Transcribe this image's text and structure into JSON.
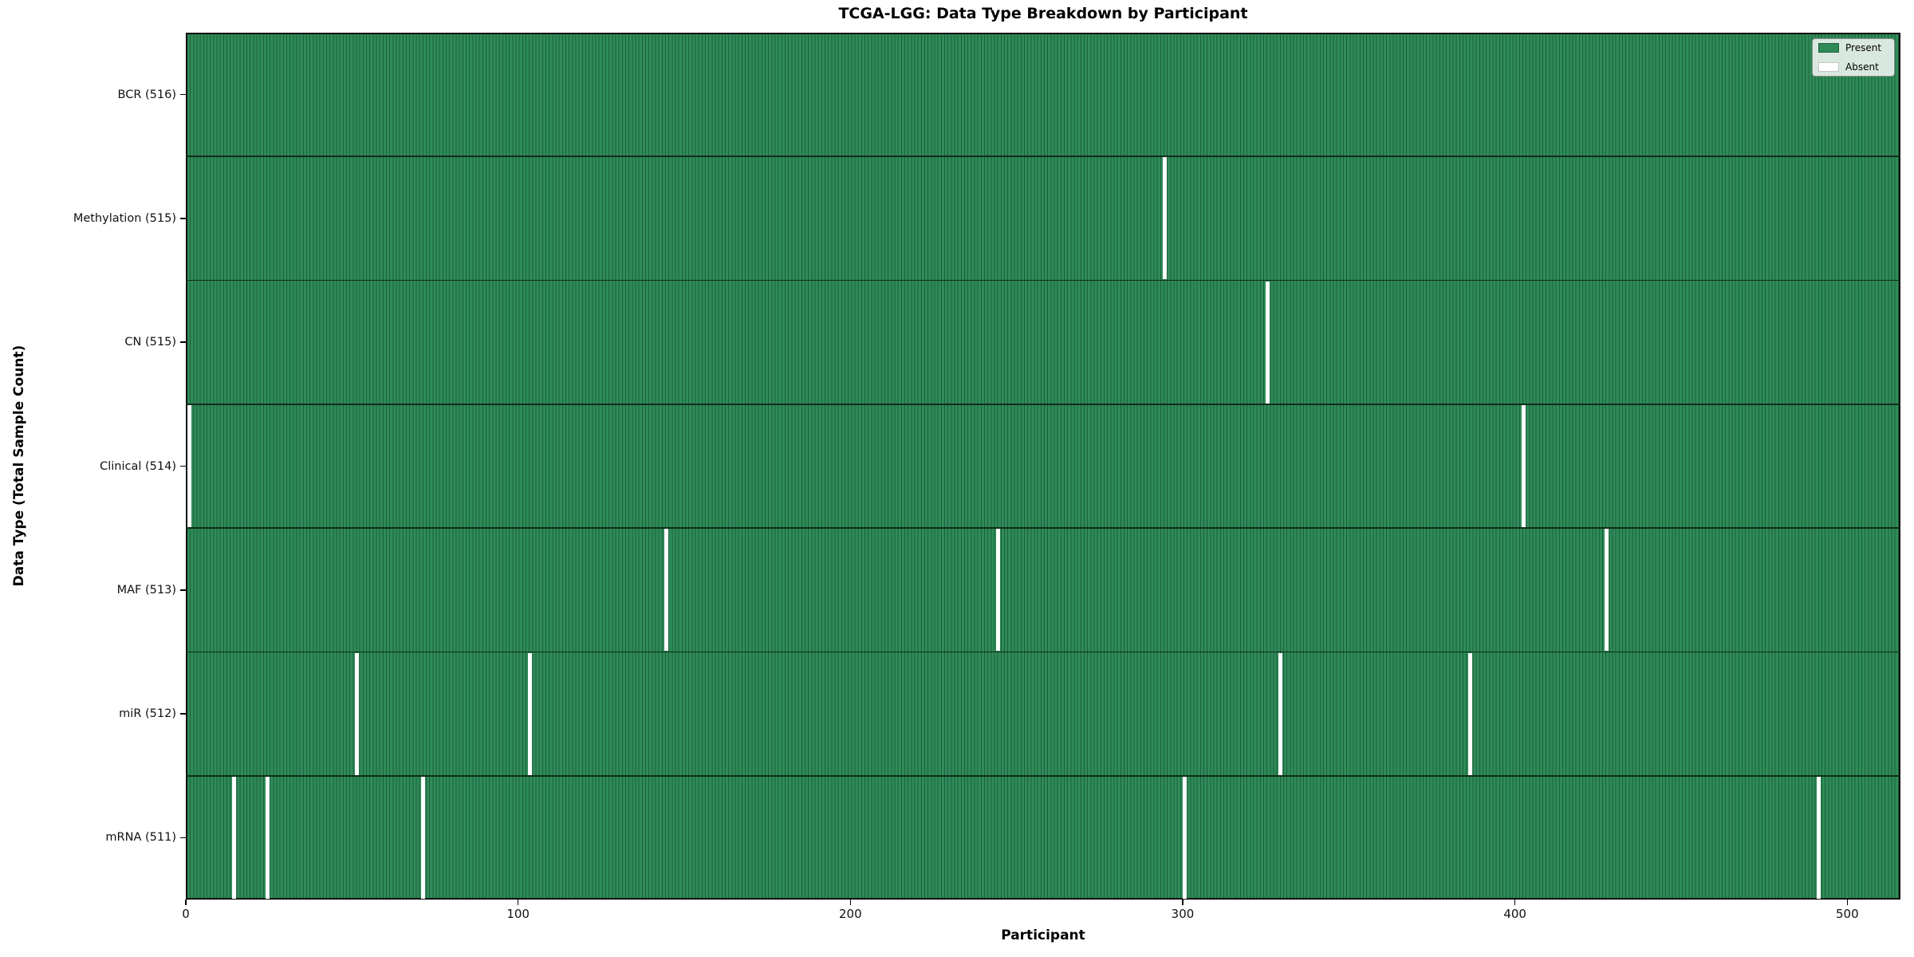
{
  "figure": {
    "background": "#ffffff"
  },
  "chart_data": {
    "type": "heatmap",
    "title": "TCGA-LGG: Data Type Breakdown by Participant",
    "xlabel": "Participant",
    "ylabel": "Data Type (Total Sample Count)",
    "xlim": [
      0,
      516
    ],
    "n_participants": 516,
    "x_ticks": [
      0,
      100,
      200,
      300,
      400,
      500
    ],
    "grid": false,
    "legend": {
      "position": "upper-right",
      "entries": [
        {
          "label": "Present",
          "color": "#2e8b57"
        },
        {
          "label": "Absent",
          "color": "#ffffff"
        }
      ]
    },
    "rows": [
      {
        "label": "BCR (516)",
        "data_type": "BCR",
        "count": 516,
        "absent_participants": []
      },
      {
        "label": "Methylation (515)",
        "data_type": "Methylation",
        "count": 515,
        "absent_participants": [
          294
        ]
      },
      {
        "label": "CN (515)",
        "data_type": "CN",
        "count": 515,
        "absent_participants": [
          325
        ]
      },
      {
        "label": "Clinical (514)",
        "data_type": "Clinical",
        "count": 514,
        "absent_participants": [
          0,
          402
        ]
      },
      {
        "label": "MAF (513)",
        "data_type": "MAF",
        "count": 513,
        "absent_participants": [
          144,
          244,
          427
        ]
      },
      {
        "label": "miR (512)",
        "data_type": "miR",
        "count": 512,
        "absent_participants": [
          51,
          103,
          329,
          386
        ]
      },
      {
        "label": "mRNA (511)",
        "data_type": "mRNA",
        "count": 511,
        "absent_participants": [
          14,
          24,
          71,
          300,
          491
        ]
      }
    ],
    "colors": {
      "present": "#2e8b57",
      "cell_edge": "#1d5f3b",
      "absent": "#ffffff",
      "row_separator": "#0f2c1b"
    }
  }
}
